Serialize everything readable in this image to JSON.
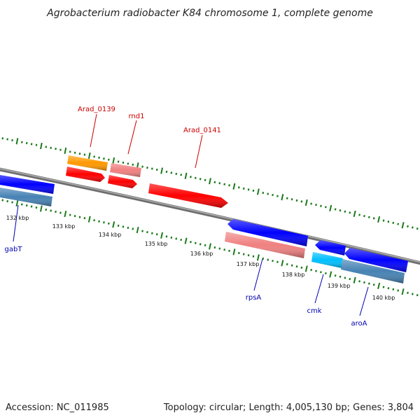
{
  "title": "Agrobacterium radiobacter K84 chromosome 1, complete genome",
  "footer": {
    "accession": "Accession: NC_011985",
    "summary": "Topology: circular; Length: 4,005,130 bp; Genes: 3,804"
  },
  "colors": {
    "backbone": "#8a8a8a",
    "tick": "#1a7a1a",
    "forward_label": "#cc0000",
    "reverse_label": "#0000b0"
  },
  "ticks": [
    "132 kbp",
    "133 kbp",
    "134 kbp",
    "135 kbp",
    "136 kbp",
    "137 kbp",
    "138 kbp",
    "139 kbp",
    "140 kbp"
  ],
  "gene_labels": {
    "forward": [
      "Arad_0139",
      "rnd1",
      "Arad_0141"
    ],
    "reverse": [
      "gabT",
      "rpsA",
      "cmk",
      "aroA"
    ]
  },
  "features": [
    {
      "name": "orange-feature",
      "color": "#ff9900"
    },
    {
      "name": "pink-feature-top",
      "color": "#f08080"
    },
    {
      "name": "red-cds",
      "color": "#ff0000"
    },
    {
      "name": "blue-cds",
      "color": "#0000ff"
    },
    {
      "name": "steelblue-feature",
      "color": "#4682b4"
    },
    {
      "name": "pink-feature-lower",
      "color": "#f08080"
    },
    {
      "name": "cyan-feature",
      "color": "#00bfff"
    }
  ]
}
